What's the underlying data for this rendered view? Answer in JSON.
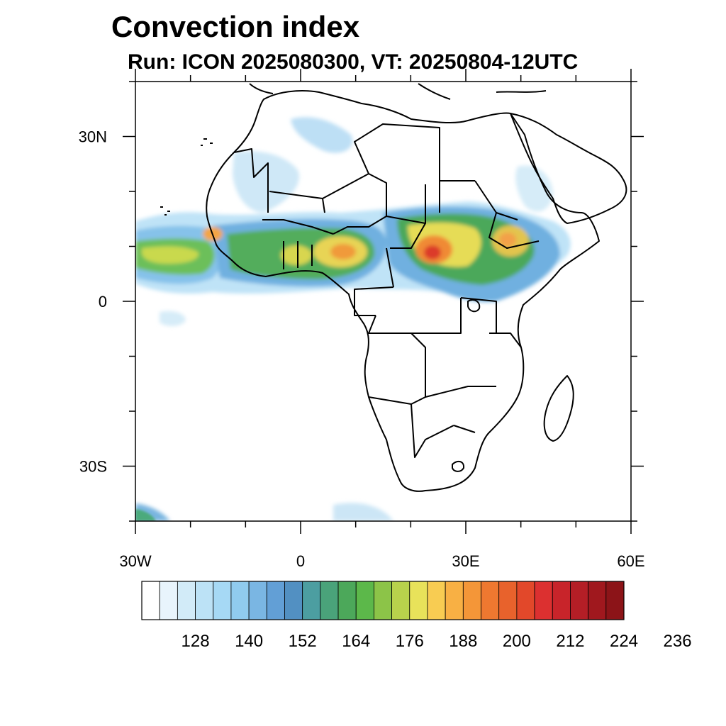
{
  "title": "Convection index",
  "subtitle": "Run: ICON 2025080300,  VT: 20250804-12UTC",
  "map": {
    "lon_range": [
      -30,
      60
    ],
    "lat_range": [
      -40,
      40
    ],
    "lon_ticks": [
      {
        "value": -30,
        "label": "30W"
      },
      {
        "value": 0,
        "label": "0"
      },
      {
        "value": 30,
        "label": "30E"
      },
      {
        "value": 60,
        "label": "60E"
      }
    ],
    "lat_ticks": [
      {
        "value": 30,
        "label": "30N"
      },
      {
        "value": 0,
        "label": "0"
      },
      {
        "value": -30,
        "label": "30S"
      }
    ]
  },
  "colorbar": {
    "colors": [
      "#ffffff",
      "#e8f4fc",
      "#d2ebf8",
      "#bce2f6",
      "#a6d9f5",
      "#90cbee",
      "#7ab6e3",
      "#629fd6",
      "#5290c2",
      "#4c9ea1",
      "#4aa37a",
      "#4ca85a",
      "#5cb84a",
      "#8cc448",
      "#b8d24c",
      "#e8e25a",
      "#f8cc52",
      "#f8b044",
      "#f49638",
      "#ee7830",
      "#e8622c",
      "#e2482a",
      "#dc3030",
      "#c8242a",
      "#b41e26",
      "#a0181e",
      "#8c1418"
    ],
    "labels": [
      {
        "value": 128,
        "text": "128"
      },
      {
        "value": 140,
        "text": "140"
      },
      {
        "value": 152,
        "text": "152"
      },
      {
        "value": 164,
        "text": "164"
      },
      {
        "value": 176,
        "text": "176"
      },
      {
        "value": 188,
        "text": "188"
      },
      {
        "value": 200,
        "text": "200"
      },
      {
        "value": 212,
        "text": "212"
      },
      {
        "value": 224,
        "text": "224"
      },
      {
        "value": 236,
        "text": "236"
      }
    ],
    "first_value": 116,
    "step": 4
  }
}
